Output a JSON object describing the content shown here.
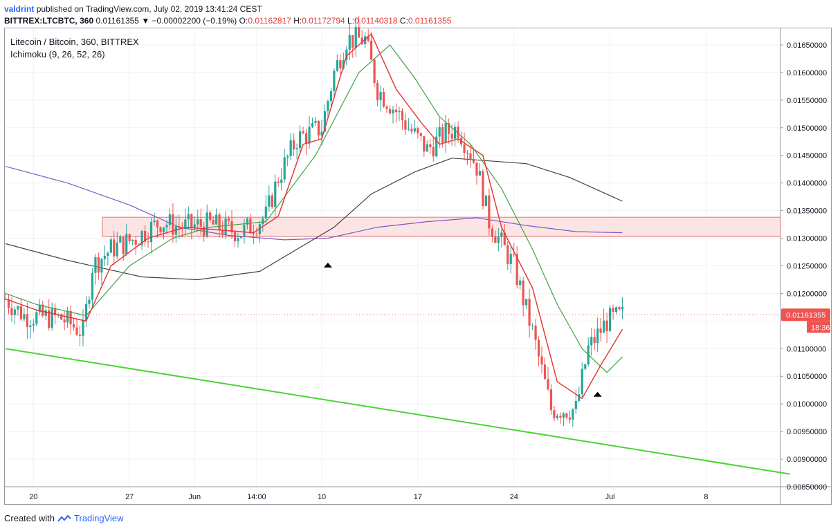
{
  "header": {
    "user": "valdrint",
    "published_text": "published on TradingView.com, July 02, 2019 13:41:24 CEST",
    "symbol": "BITTREX:LTCBTC, 360",
    "last": "0.01161355",
    "change": "▼ −0.00002200 (−0.19%)",
    "o_label": "O:",
    "o_value": "0.01162817",
    "h_label": "H:",
    "h_value": "0.01172794",
    "l_label": "L:",
    "l_value": "0.01140318",
    "c_label": "C:",
    "c_value": "0.01161355"
  },
  "legend": {
    "title": "Litecoin / Bitcoin, 360, BITTREX",
    "indicator": "Ichimoku (9, 26, 52, 26)"
  },
  "footer": {
    "created_with": "Created with",
    "brand": "TradingView"
  },
  "colors": {
    "up": "#26a69a",
    "down": "#ef5350",
    "conversion": "#e53935",
    "base": "#43a047",
    "span_a": "#424242",
    "span_b": "#7e57c2",
    "trendline": "#4cd137",
    "zone_fill": "#fce4e4",
    "zone_stroke": "#e57373"
  },
  "chart_data": {
    "type": "candlestick",
    "ylim": [
      0.0085,
      0.0168
    ],
    "y_ticks": [
      "0.01650000",
      "0.01600000",
      "0.01550000",
      "0.01500000",
      "0.01450000",
      "0.01400000",
      "0.01350000",
      "0.01300000",
      "0.01250000",
      "0.01200000",
      "0.01150000",
      "0.01100000",
      "0.01050000",
      "0.01000000",
      "0.00950000",
      "0.00900000",
      "0.00850000"
    ],
    "x_ticks": [
      "20",
      "27",
      "Jun",
      "14:00",
      "10",
      "17",
      "24",
      "Jul",
      "8"
    ],
    "x_tick_index": [
      9,
      40,
      61,
      81,
      102,
      133,
      164,
      195,
      226
    ],
    "last_price_label": "0.01161355",
    "countdown_label": "18:36",
    "resistance_zone": [
      0.01303,
      0.01338
    ],
    "trendline": {
      "from": [
        0,
        0.011
      ],
      "to": [
        253,
        0.00873
      ]
    },
    "markers": [
      {
        "i": 104,
        "y": 0.01252
      },
      {
        "i": 191,
        "y": 0.01018
      }
    ],
    "candle_anchors": [
      [
        0,
        0.0119
      ],
      [
        6,
        0.0116
      ],
      [
        18,
        0.01155
      ],
      [
        25,
        0.0113
      ],
      [
        28,
        0.0125
      ],
      [
        34,
        0.0128
      ],
      [
        42,
        0.013
      ],
      [
        50,
        0.0133
      ],
      [
        56,
        0.0132
      ],
      [
        66,
        0.01325
      ],
      [
        76,
        0.0131
      ],
      [
        84,
        0.0134
      ],
      [
        88,
        0.0141
      ],
      [
        94,
        0.0148
      ],
      [
        102,
        0.015
      ],
      [
        106,
        0.016
      ],
      [
        110,
        0.0166
      ],
      [
        116,
        0.0166
      ],
      [
        120,
        0.0157
      ],
      [
        126,
        0.0153
      ],
      [
        130,
        0.015
      ],
      [
        136,
        0.0146
      ],
      [
        142,
        0.0149
      ],
      [
        146,
        0.015
      ],
      [
        152,
        0.0143
      ],
      [
        156,
        0.0133
      ],
      [
        164,
        0.0125
      ],
      [
        170,
        0.0113
      ],
      [
        176,
        0.0099
      ],
      [
        184,
        0.0099
      ],
      [
        188,
        0.011
      ],
      [
        194,
        0.0115
      ],
      [
        199,
        0.0116
      ]
    ],
    "conversion_line": [
      [
        0,
        0.0119
      ],
      [
        10,
        0.0117
      ],
      [
        26,
        0.0115
      ],
      [
        34,
        0.0125
      ],
      [
        46,
        0.013
      ],
      [
        58,
        0.0132
      ],
      [
        80,
        0.0131
      ],
      [
        88,
        0.0134
      ],
      [
        96,
        0.0147
      ],
      [
        102,
        0.0148
      ],
      [
        110,
        0.0163
      ],
      [
        118,
        0.0167
      ],
      [
        126,
        0.0157
      ],
      [
        134,
        0.0151
      ],
      [
        140,
        0.0147
      ],
      [
        146,
        0.0148
      ],
      [
        154,
        0.0145
      ],
      [
        160,
        0.0132
      ],
      [
        170,
        0.0121
      ],
      [
        178,
        0.0104
      ],
      [
        186,
        0.0101
      ],
      [
        192,
        0.0107
      ],
      [
        199,
        0.01135
      ]
    ],
    "base_line": [
      [
        0,
        0.012
      ],
      [
        10,
        0.0118
      ],
      [
        26,
        0.0116
      ],
      [
        40,
        0.0125
      ],
      [
        54,
        0.013
      ],
      [
        66,
        0.0132
      ],
      [
        84,
        0.0133
      ],
      [
        100,
        0.0145
      ],
      [
        114,
        0.016
      ],
      [
        124,
        0.0165
      ],
      [
        132,
        0.0159
      ],
      [
        140,
        0.0152
      ],
      [
        150,
        0.0147
      ],
      [
        160,
        0.0139
      ],
      [
        170,
        0.0128
      ],
      [
        178,
        0.0118
      ],
      [
        186,
        0.011
      ],
      [
        194,
        0.01057
      ],
      [
        199,
        0.01085
      ]
    ],
    "span_a": [
      [
        0,
        0.0129
      ],
      [
        20,
        0.0126
      ],
      [
        44,
        0.0123
      ],
      [
        62,
        0.01225
      ],
      [
        82,
        0.0124
      ],
      [
        94,
        0.0128
      ],
      [
        106,
        0.0132
      ],
      [
        118,
        0.0138
      ],
      [
        132,
        0.0142
      ],
      [
        144,
        0.01445
      ],
      [
        156,
        0.0144
      ],
      [
        168,
        0.01435
      ],
      [
        182,
        0.0141
      ],
      [
        199,
        0.01367
      ]
    ],
    "span_b": [
      [
        0,
        0.0143
      ],
      [
        20,
        0.014
      ],
      [
        40,
        0.0136
      ],
      [
        56,
        0.0132
      ],
      [
        72,
        0.01305
      ],
      [
        90,
        0.01297
      ],
      [
        104,
        0.013
      ],
      [
        120,
        0.0132
      ],
      [
        136,
        0.0133
      ],
      [
        152,
        0.01337
      ],
      [
        168,
        0.01323
      ],
      [
        184,
        0.01312
      ],
      [
        199,
        0.0131
      ]
    ]
  }
}
